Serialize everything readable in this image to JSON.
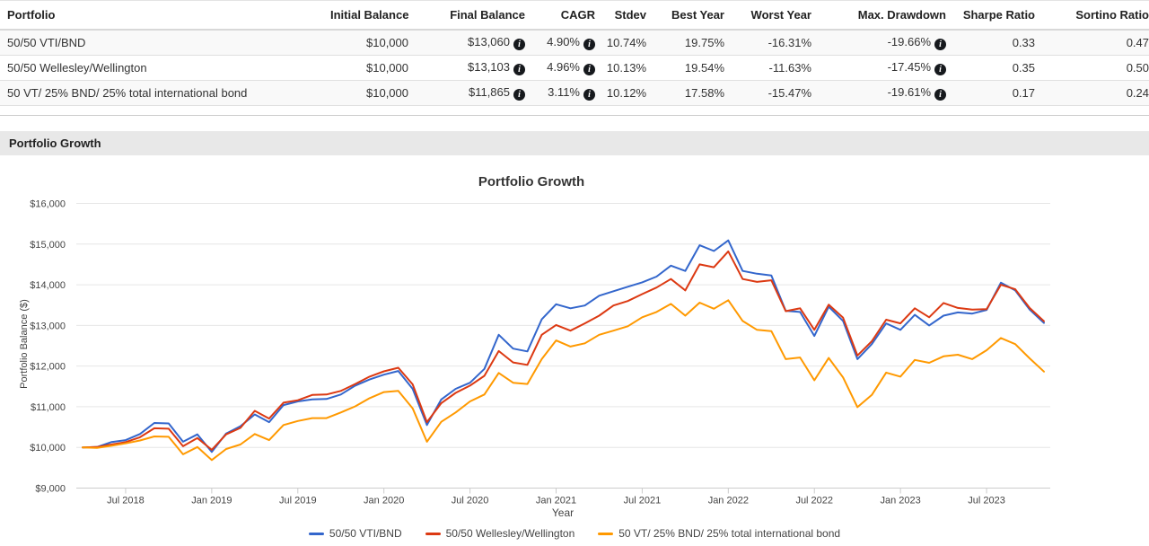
{
  "icons": {
    "info": "i"
  },
  "section": {
    "title": "Portfolio Growth"
  },
  "table": {
    "columns": [
      "Portfolio",
      "Initial Balance",
      "Final Balance",
      "CAGR",
      "Stdev",
      "Best Year",
      "Worst Year",
      "Max. Drawdown",
      "Sharpe Ratio",
      "Sortino Ratio"
    ],
    "rows": [
      {
        "name": "50/50 VTI/BND",
        "initial": "$10,000",
        "final": "$13,060",
        "cagr": "4.90%",
        "stdev": "10.74%",
        "best": "19.75%",
        "worst": "-16.31%",
        "maxdd": "-19.66%",
        "sharpe": "0.33",
        "sortino": "0.47"
      },
      {
        "name": "50/50 Wellesley/Wellington",
        "initial": "$10,000",
        "final": "$13,103",
        "cagr": "4.96%",
        "stdev": "10.13%",
        "best": "19.54%",
        "worst": "-11.63%",
        "maxdd": "-17.45%",
        "sharpe": "0.35",
        "sortino": "0.50"
      },
      {
        "name": "50 VT/ 25% BND/ 25% total international bond",
        "initial": "$10,000",
        "final": "$11,865",
        "cagr": "3.11%",
        "stdev": "10.12%",
        "best": "17.58%",
        "worst": "-15.47%",
        "maxdd": "-19.61%",
        "sharpe": "0.17",
        "sortino": "0.24"
      }
    ]
  },
  "chart_data": {
    "type": "line",
    "title": "Portfolio Growth",
    "xlabel": "Year",
    "ylabel": "Portfolio Balance ($)",
    "ylim": [
      9000,
      16000
    ],
    "grid": true,
    "legend_position": "bottom",
    "y_ticks": [
      "$9,000",
      "$10,000",
      "$11,000",
      "$12,000",
      "$13,000",
      "$14,000",
      "$15,000",
      "$16,000"
    ],
    "x_ticks": [
      "Jul 2018",
      "Jan 2019",
      "Jul 2019",
      "Jan 2020",
      "Jul 2020",
      "Jan 2021",
      "Jul 2021",
      "Jan 2022",
      "Jul 2022",
      "Jan 2023",
      "Jul 2023"
    ],
    "x": [
      "Apr 2018",
      "May 2018",
      "Jun 2018",
      "Jul 2018",
      "Aug 2018",
      "Sep 2018",
      "Oct 2018",
      "Nov 2018",
      "Dec 2018",
      "Jan 2019",
      "Feb 2019",
      "Mar 2019",
      "Apr 2019",
      "May 2019",
      "Jun 2019",
      "Jul 2019",
      "Aug 2019",
      "Sep 2019",
      "Oct 2019",
      "Nov 2019",
      "Dec 2019",
      "Jan 2020",
      "Feb 2020",
      "Mar 2020",
      "Apr 2020",
      "May 2020",
      "Jun 2020",
      "Jul 2020",
      "Aug 2020",
      "Sep 2020",
      "Oct 2020",
      "Nov 2020",
      "Dec 2020",
      "Jan 2021",
      "Feb 2021",
      "Mar 2021",
      "Apr 2021",
      "May 2021",
      "Jun 2021",
      "Jul 2021",
      "Aug 2021",
      "Sep 2021",
      "Oct 2021",
      "Nov 2021",
      "Dec 2021",
      "Jan 2022",
      "Feb 2022",
      "Mar 2022",
      "Apr 2022",
      "May 2022",
      "Jun 2022",
      "Jul 2022",
      "Aug 2022",
      "Sep 2022",
      "Oct 2022",
      "Nov 2022",
      "Dec 2022",
      "Jan 2023",
      "Feb 2023",
      "Mar 2023",
      "Apr 2023",
      "May 2023",
      "Jun 2023",
      "Jul 2023",
      "Aug 2023",
      "Sep 2023",
      "Oct 2023",
      "Nov 2023"
    ],
    "series": [
      {
        "name": "50/50 VTI/BND",
        "color": "#3366cc",
        "values": [
          10000,
          10010,
          10130,
          10180,
          10330,
          10600,
          10590,
          10140,
          10320,
          9890,
          10340,
          10520,
          10810,
          10620,
          11040,
          11130,
          11180,
          11190,
          11300,
          11520,
          11670,
          11790,
          11880,
          11440,
          10550,
          11180,
          11440,
          11590,
          11930,
          12770,
          12430,
          12360,
          13150,
          13520,
          13420,
          13490,
          13730,
          13840,
          13950,
          14060,
          14200,
          14470,
          14340,
          14970,
          14830,
          15090,
          14340,
          14270,
          14230,
          13360,
          13330,
          12740,
          13460,
          13110,
          12170,
          12540,
          13050,
          12890,
          13260,
          13000,
          13240,
          13320,
          13290,
          13380,
          14050,
          13860,
          13390,
          13060
        ]
      },
      {
        "name": "50/50 Wellesley/Wellington",
        "color": "#dc3912",
        "values": [
          10000,
          10010,
          10070,
          10130,
          10250,
          10470,
          10460,
          10030,
          10230,
          9940,
          10320,
          10480,
          10900,
          10710,
          11100,
          11160,
          11290,
          11300,
          11390,
          11560,
          11740,
          11870,
          11960,
          11550,
          10620,
          11090,
          11340,
          11520,
          11760,
          12370,
          12090,
          12030,
          12770,
          13010,
          12870,
          13050,
          13240,
          13490,
          13600,
          13770,
          13930,
          14140,
          13860,
          14500,
          14430,
          14820,
          14140,
          14070,
          14110,
          13350,
          13420,
          12890,
          13510,
          13190,
          12260,
          12610,
          13140,
          13050,
          13420,
          13200,
          13550,
          13430,
          13390,
          13400,
          14000,
          13890,
          13430,
          13103
        ]
      },
      {
        "name": "50 VT/ 25% BND/ 25% total international bond",
        "color": "#ff9900",
        "values": [
          10000,
          9990,
          10040,
          10100,
          10170,
          10270,
          10260,
          9830,
          10010,
          9690,
          9960,
          10070,
          10330,
          10180,
          10550,
          10650,
          10720,
          10720,
          10860,
          11010,
          11210,
          11360,
          11390,
          10960,
          10140,
          10630,
          10860,
          11130,
          11300,
          11830,
          11590,
          11560,
          12170,
          12630,
          12480,
          12560,
          12770,
          12870,
          12980,
          13200,
          13330,
          13530,
          13240,
          13560,
          13410,
          13620,
          13110,
          12890,
          12860,
          12170,
          12210,
          11650,
          12200,
          11720,
          10990,
          11290,
          11840,
          11740,
          12150,
          12080,
          12240,
          12280,
          12170,
          12390,
          12690,
          12540,
          12190,
          11865
        ]
      }
    ]
  }
}
